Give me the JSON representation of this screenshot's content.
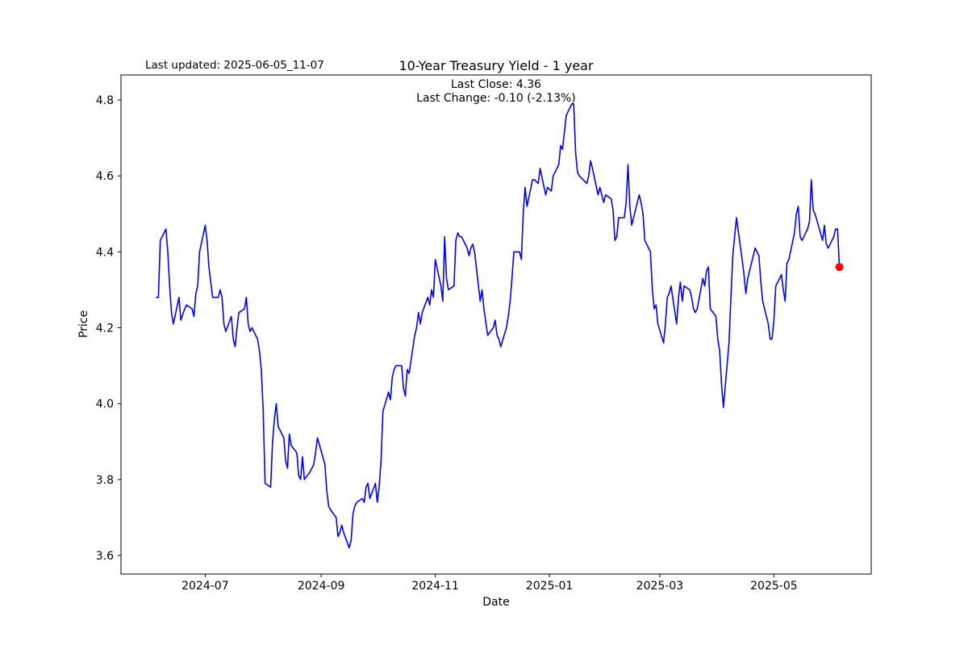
{
  "header": {
    "last_updated": "Last updated: 2025-06-05_11-07",
    "title": "10-Year Treasury Yield - 1 year",
    "subtitle_line1": "Last Close: 4.36",
    "subtitle_line2": "Last Change: -0.10 (-2.13%)"
  },
  "chart_data": {
    "type": "line",
    "title": "10-Year Treasury Yield - 1 year",
    "xlabel": "Date",
    "ylabel": "Price",
    "grid": false,
    "legend_position": "none",
    "line_color": "#0000ff",
    "marker_color": "#ff0000",
    "axis_color": "#000000",
    "last_close": 4.36,
    "last_change": "-0.10 (-2.13%)",
    "ylim": [
      3.551,
      4.866
    ],
    "xlim": [
      "2024-05-17",
      "2025-06-22"
    ],
    "y_tick_values": [
      3.6,
      3.8,
      4.0,
      4.2,
      4.4,
      4.6,
      4.8
    ],
    "y_tick_labels": [
      "3.6",
      "3.8",
      "4.0",
      "4.2",
      "4.4",
      "4.6",
      "4.8"
    ],
    "x_tick_dates": [
      "2024-07-01",
      "2024-09-01",
      "2024-11-01",
      "2025-01-01",
      "2025-03-01",
      "2025-05-01"
    ],
    "x_tick_labels": [
      "2024-07",
      "2024-09",
      "2024-11",
      "2025-01",
      "2025-03",
      "2025-05"
    ],
    "points": [
      [
        "2024-06-05",
        4.28
      ],
      [
        "2024-06-06",
        4.28
      ],
      [
        "2024-06-07",
        4.43
      ],
      [
        "2024-06-10",
        4.46
      ],
      [
        "2024-06-11",
        4.4
      ],
      [
        "2024-06-12",
        4.31
      ],
      [
        "2024-06-13",
        4.24
      ],
      [
        "2024-06-14",
        4.21
      ],
      [
        "2024-06-17",
        4.28
      ],
      [
        "2024-06-18",
        4.22
      ],
      [
        "2024-06-20",
        4.25
      ],
      [
        "2024-06-21",
        4.26
      ],
      [
        "2024-06-24",
        4.25
      ],
      [
        "2024-06-25",
        4.23
      ],
      [
        "2024-06-26",
        4.29
      ],
      [
        "2024-06-27",
        4.31
      ],
      [
        "2024-06-28",
        4.4
      ],
      [
        "2024-07-01",
        4.47
      ],
      [
        "2024-07-02",
        4.43
      ],
      [
        "2024-07-03",
        4.36
      ],
      [
        "2024-07-05",
        4.28
      ],
      [
        "2024-07-08",
        4.28
      ],
      [
        "2024-07-09",
        4.3
      ],
      [
        "2024-07-10",
        4.28
      ],
      [
        "2024-07-11",
        4.21
      ],
      [
        "2024-07-12",
        4.19
      ],
      [
        "2024-07-15",
        4.23
      ],
      [
        "2024-07-16",
        4.17
      ],
      [
        "2024-07-17",
        4.15
      ],
      [
        "2024-07-18",
        4.2
      ],
      [
        "2024-07-19",
        4.24
      ],
      [
        "2024-07-22",
        4.25
      ],
      [
        "2024-07-23",
        4.28
      ],
      [
        "2024-07-24",
        4.21
      ],
      [
        "2024-07-25",
        4.19
      ],
      [
        "2024-07-26",
        4.2
      ],
      [
        "2024-07-29",
        4.17
      ],
      [
        "2024-07-30",
        4.14
      ],
      [
        "2024-07-31",
        4.09
      ],
      [
        "2024-08-01",
        3.98
      ],
      [
        "2024-08-02",
        3.79
      ],
      [
        "2024-08-05",
        3.78
      ],
      [
        "2024-08-06",
        3.9
      ],
      [
        "2024-08-07",
        3.96
      ],
      [
        "2024-08-08",
        4.0
      ],
      [
        "2024-08-09",
        3.94
      ],
      [
        "2024-08-12",
        3.91
      ],
      [
        "2024-08-13",
        3.85
      ],
      [
        "2024-08-14",
        3.83
      ],
      [
        "2024-08-15",
        3.92
      ],
      [
        "2024-08-16",
        3.89
      ],
      [
        "2024-08-19",
        3.87
      ],
      [
        "2024-08-20",
        3.81
      ],
      [
        "2024-08-21",
        3.8
      ],
      [
        "2024-08-22",
        3.86
      ],
      [
        "2024-08-23",
        3.8
      ],
      [
        "2024-08-26",
        3.82
      ],
      [
        "2024-08-27",
        3.83
      ],
      [
        "2024-08-28",
        3.84
      ],
      [
        "2024-08-29",
        3.87
      ],
      [
        "2024-08-30",
        3.91
      ],
      [
        "2024-09-03",
        3.84
      ],
      [
        "2024-09-04",
        3.77
      ],
      [
        "2024-09-05",
        3.73
      ],
      [
        "2024-09-06",
        3.72
      ],
      [
        "2024-09-09",
        3.7
      ],
      [
        "2024-09-10",
        3.65
      ],
      [
        "2024-09-11",
        3.66
      ],
      [
        "2024-09-12",
        3.68
      ],
      [
        "2024-09-13",
        3.66
      ],
      [
        "2024-09-16",
        3.62
      ],
      [
        "2024-09-17",
        3.64
      ],
      [
        "2024-09-18",
        3.71
      ],
      [
        "2024-09-19",
        3.73
      ],
      [
        "2024-09-20",
        3.74
      ],
      [
        "2024-09-23",
        3.75
      ],
      [
        "2024-09-24",
        3.74
      ],
      [
        "2024-09-25",
        3.78
      ],
      [
        "2024-09-26",
        3.79
      ],
      [
        "2024-09-27",
        3.75
      ],
      [
        "2024-09-30",
        3.79
      ],
      [
        "2024-10-01",
        3.74
      ],
      [
        "2024-10-02",
        3.78
      ],
      [
        "2024-10-03",
        3.85
      ],
      [
        "2024-10-04",
        3.98
      ],
      [
        "2024-10-07",
        4.03
      ],
      [
        "2024-10-08",
        4.01
      ],
      [
        "2024-10-09",
        4.07
      ],
      [
        "2024-10-10",
        4.09
      ],
      [
        "2024-10-11",
        4.1
      ],
      [
        "2024-10-14",
        4.1
      ],
      [
        "2024-10-15",
        4.04
      ],
      [
        "2024-10-16",
        4.02
      ],
      [
        "2024-10-17",
        4.09
      ],
      [
        "2024-10-18",
        4.08
      ],
      [
        "2024-10-21",
        4.18
      ],
      [
        "2024-10-22",
        4.2
      ],
      [
        "2024-10-23",
        4.24
      ],
      [
        "2024-10-24",
        4.21
      ],
      [
        "2024-10-25",
        4.24
      ],
      [
        "2024-10-28",
        4.28
      ],
      [
        "2024-10-29",
        4.26
      ],
      [
        "2024-10-30",
        4.3
      ],
      [
        "2024-10-31",
        4.28
      ],
      [
        "2024-11-01",
        4.38
      ],
      [
        "2024-11-04",
        4.31
      ],
      [
        "2024-11-05",
        4.27
      ],
      [
        "2024-11-06",
        4.44
      ],
      [
        "2024-11-07",
        4.33
      ],
      [
        "2024-11-08",
        4.3
      ],
      [
        "2024-11-11",
        4.31
      ],
      [
        "2024-11-12",
        4.43
      ],
      [
        "2024-11-13",
        4.45
      ],
      [
        "2024-11-14",
        4.44
      ],
      [
        "2024-11-15",
        4.44
      ],
      [
        "2024-11-18",
        4.41
      ],
      [
        "2024-11-19",
        4.39
      ],
      [
        "2024-11-20",
        4.41
      ],
      [
        "2024-11-21",
        4.42
      ],
      [
        "2024-11-22",
        4.4
      ],
      [
        "2024-11-25",
        4.27
      ],
      [
        "2024-11-26",
        4.3
      ],
      [
        "2024-11-27",
        4.25
      ],
      [
        "2024-11-29",
        4.18
      ],
      [
        "2024-12-02",
        4.2
      ],
      [
        "2024-12-03",
        4.22
      ],
      [
        "2024-12-04",
        4.18
      ],
      [
        "2024-12-05",
        4.17
      ],
      [
        "2024-12-06",
        4.15
      ],
      [
        "2024-12-09",
        4.2
      ],
      [
        "2024-12-10",
        4.23
      ],
      [
        "2024-12-11",
        4.27
      ],
      [
        "2024-12-12",
        4.33
      ],
      [
        "2024-12-13",
        4.4
      ],
      [
        "2024-12-16",
        4.4
      ],
      [
        "2024-12-17",
        4.38
      ],
      [
        "2024-12-18",
        4.5
      ],
      [
        "2024-12-19",
        4.57
      ],
      [
        "2024-12-20",
        4.52
      ],
      [
        "2024-12-23",
        4.59
      ],
      [
        "2024-12-24",
        4.59
      ],
      [
        "2024-12-26",
        4.58
      ],
      [
        "2024-12-27",
        4.62
      ],
      [
        "2024-12-30",
        4.55
      ],
      [
        "2024-12-31",
        4.57
      ],
      [
        "2025-01-02",
        4.56
      ],
      [
        "2025-01-03",
        4.6
      ],
      [
        "2025-01-06",
        4.63
      ],
      [
        "2025-01-07",
        4.68
      ],
      [
        "2025-01-08",
        4.67
      ],
      [
        "2025-01-10",
        4.76
      ],
      [
        "2025-01-13",
        4.79
      ],
      [
        "2025-01-14",
        4.79
      ],
      [
        "2025-01-15",
        4.66
      ],
      [
        "2025-01-16",
        4.61
      ],
      [
        "2025-01-17",
        4.6
      ],
      [
        "2025-01-21",
        4.58
      ],
      [
        "2025-01-22",
        4.6
      ],
      [
        "2025-01-23",
        4.64
      ],
      [
        "2025-01-24",
        4.62
      ],
      [
        "2025-01-27",
        4.55
      ],
      [
        "2025-01-28",
        4.57
      ],
      [
        "2025-01-29",
        4.55
      ],
      [
        "2025-01-30",
        4.53
      ],
      [
        "2025-01-31",
        4.55
      ],
      [
        "2025-02-03",
        4.54
      ],
      [
        "2025-02-04",
        4.51
      ],
      [
        "2025-02-05",
        4.43
      ],
      [
        "2025-02-06",
        4.44
      ],
      [
        "2025-02-07",
        4.49
      ],
      [
        "2025-02-10",
        4.49
      ],
      [
        "2025-02-11",
        4.53
      ],
      [
        "2025-02-12",
        4.63
      ],
      [
        "2025-02-13",
        4.52
      ],
      [
        "2025-02-14",
        4.47
      ],
      [
        "2025-02-18",
        4.55
      ],
      [
        "2025-02-19",
        4.53
      ],
      [
        "2025-02-20",
        4.5
      ],
      [
        "2025-02-21",
        4.43
      ],
      [
        "2025-02-24",
        4.4
      ],
      [
        "2025-02-25",
        4.3
      ],
      [
        "2025-02-26",
        4.25
      ],
      [
        "2025-02-27",
        4.26
      ],
      [
        "2025-02-28",
        4.21
      ],
      [
        "2025-03-03",
        4.16
      ],
      [
        "2025-03-04",
        4.21
      ],
      [
        "2025-03-05",
        4.28
      ],
      [
        "2025-03-06",
        4.29
      ],
      [
        "2025-03-07",
        4.31
      ],
      [
        "2025-03-10",
        4.21
      ],
      [
        "2025-03-11",
        4.28
      ],
      [
        "2025-03-12",
        4.32
      ],
      [
        "2025-03-13",
        4.27
      ],
      [
        "2025-03-14",
        4.31
      ],
      [
        "2025-03-17",
        4.3
      ],
      [
        "2025-03-18",
        4.28
      ],
      [
        "2025-03-19",
        4.25
      ],
      [
        "2025-03-20",
        4.24
      ],
      [
        "2025-03-21",
        4.25
      ],
      [
        "2025-03-24",
        4.33
      ],
      [
        "2025-03-25",
        4.31
      ],
      [
        "2025-03-26",
        4.35
      ],
      [
        "2025-03-27",
        4.36
      ],
      [
        "2025-03-28",
        4.25
      ],
      [
        "2025-03-31",
        4.23
      ],
      [
        "2025-04-01",
        4.17
      ],
      [
        "2025-04-02",
        4.14
      ],
      [
        "2025-04-03",
        4.05
      ],
      [
        "2025-04-04",
        3.99
      ],
      [
        "2025-04-07",
        4.16
      ],
      [
        "2025-04-08",
        4.28
      ],
      [
        "2025-04-09",
        4.39
      ],
      [
        "2025-04-10",
        4.44
      ],
      [
        "2025-04-11",
        4.49
      ],
      [
        "2025-04-14",
        4.38
      ],
      [
        "2025-04-15",
        4.34
      ],
      [
        "2025-04-16",
        4.29
      ],
      [
        "2025-04-17",
        4.33
      ],
      [
        "2025-04-21",
        4.41
      ],
      [
        "2025-04-22",
        4.4
      ],
      [
        "2025-04-23",
        4.39
      ],
      [
        "2025-04-24",
        4.32
      ],
      [
        "2025-04-25",
        4.27
      ],
      [
        "2025-04-28",
        4.21
      ],
      [
        "2025-04-29",
        4.17
      ],
      [
        "2025-04-30",
        4.17
      ],
      [
        "2025-05-01",
        4.22
      ],
      [
        "2025-05-02",
        4.31
      ],
      [
        "2025-05-05",
        4.34
      ],
      [
        "2025-05-06",
        4.3
      ],
      [
        "2025-05-07",
        4.27
      ],
      [
        "2025-05-08",
        4.37
      ],
      [
        "2025-05-09",
        4.38
      ],
      [
        "2025-05-12",
        4.45
      ],
      [
        "2025-05-13",
        4.5
      ],
      [
        "2025-05-14",
        4.52
      ],
      [
        "2025-05-15",
        4.44
      ],
      [
        "2025-05-16",
        4.43
      ],
      [
        "2025-05-19",
        4.46
      ],
      [
        "2025-05-20",
        4.48
      ],
      [
        "2025-05-21",
        4.59
      ],
      [
        "2025-05-22",
        4.51
      ],
      [
        "2025-05-23",
        4.5
      ],
      [
        "2025-05-27",
        4.43
      ],
      [
        "2025-05-28",
        4.47
      ],
      [
        "2025-05-29",
        4.42
      ],
      [
        "2025-05-30",
        4.41
      ],
      [
        "2025-06-02",
        4.44
      ],
      [
        "2025-06-03",
        4.46
      ],
      [
        "2025-06-04",
        4.46
      ],
      [
        "2025-06-05",
        4.36
      ]
    ]
  }
}
